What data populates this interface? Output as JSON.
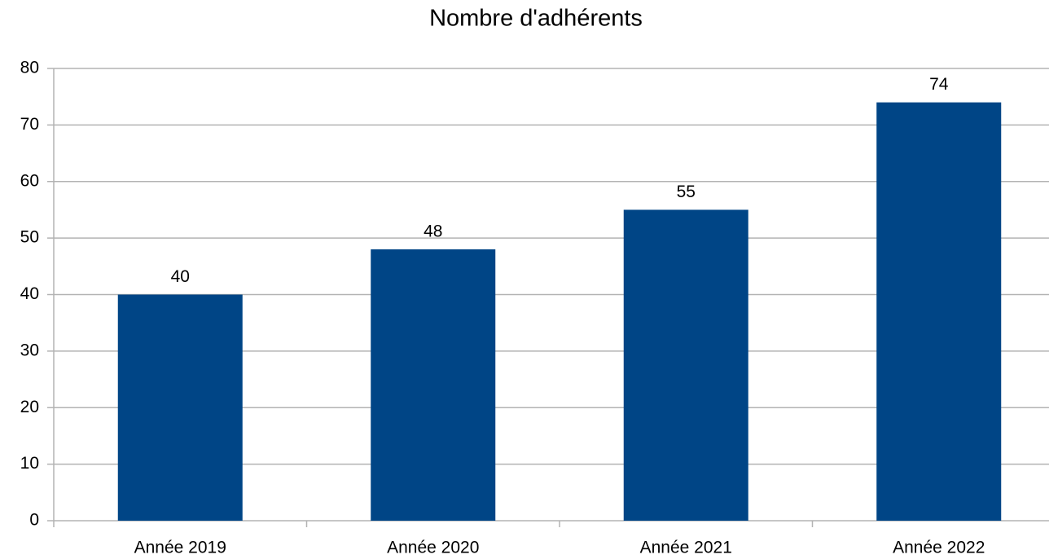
{
  "chart_data": {
    "type": "bar",
    "title": "Nombre d'adhérents",
    "categories": [
      "Année 2019",
      "Année 2020",
      "Année 2021",
      "Année 2022"
    ],
    "values": [
      40,
      48,
      55,
      74
    ],
    "color": "#004586",
    "ylim": [
      0,
      80
    ],
    "yticks": [
      0,
      10,
      20,
      30,
      40,
      50,
      60,
      70,
      80
    ],
    "grid": true,
    "data_labels": true
  }
}
